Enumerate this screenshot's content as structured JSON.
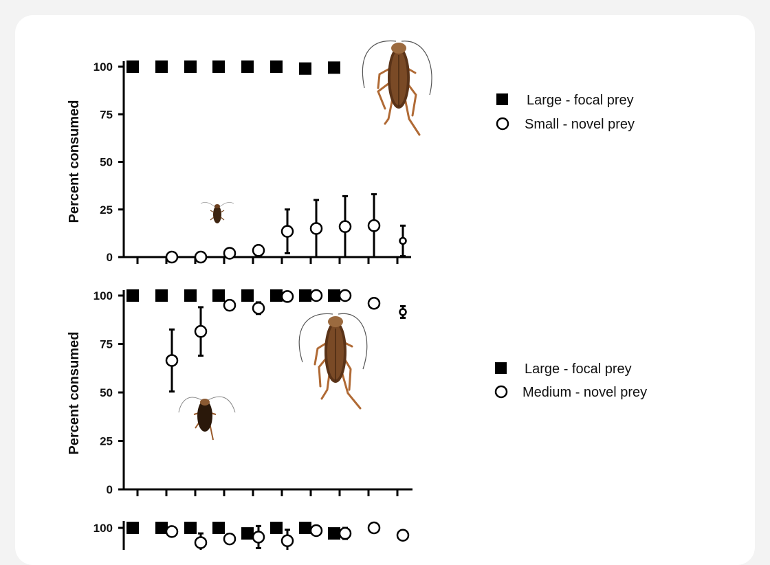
{
  "colors": {
    "marker": "#000000",
    "open_marker_fill": "#ffffff",
    "cockroach_body": "#5a3318",
    "cockroach_wing": "#8a5a33",
    "cockroach_leg": "#b06a35",
    "background": "#f3f3f3",
    "card": "#ffffff"
  },
  "chart_data": [
    {
      "type": "scatter",
      "ylabel": "Percent consumed",
      "ylim": [
        0,
        100
      ],
      "yticks": [
        0,
        25,
        50,
        75,
        100
      ],
      "x_tick_count": 10,
      "legend_position": "right",
      "series": [
        {
          "name": "Large - focal prey",
          "marker": "filled-square",
          "x": [
            1,
            2,
            3,
            4,
            5,
            6,
            7,
            8
          ],
          "y": [
            100,
            100,
            100,
            100,
            100,
            100,
            99,
            99.5
          ]
        },
        {
          "name": "Small - novel prey",
          "marker": "open-circle",
          "x": [
            2,
            3,
            4,
            5,
            6,
            7,
            8,
            9,
            10
          ],
          "y": [
            0,
            0,
            2,
            3.5,
            13.5,
            15,
            16,
            16.5,
            8.5
          ],
          "err": [
            0,
            0,
            0,
            0,
            11.5,
            15,
            16,
            16.5,
            8
          ]
        }
      ]
    },
    {
      "type": "scatter",
      "ylabel": "Percent consumed",
      "ylim": [
        0,
        100
      ],
      "yticks": [
        0,
        25,
        50,
        75,
        100
      ],
      "x_tick_count": 10,
      "legend_position": "right",
      "series": [
        {
          "name": "Large - focal prey",
          "marker": "filled-square",
          "x": [
            1,
            2,
            3,
            4,
            5,
            6,
            7,
            8
          ],
          "y": [
            100,
            100,
            100,
            100,
            100,
            100,
            100,
            100
          ]
        },
        {
          "name": "Medium - novel prey",
          "marker": "open-circle",
          "x": [
            2,
            3,
            4,
            5,
            6,
            7,
            8,
            9,
            10
          ],
          "y": [
            66.5,
            81.5,
            95,
            93.5,
            99.5,
            100,
            100,
            96,
            91.5
          ],
          "err": [
            16,
            12.5,
            0,
            3,
            0,
            0,
            0,
            0,
            3
          ]
        }
      ]
    },
    {
      "type": "scatter",
      "ylim": [
        0,
        100
      ],
      "yticks": [
        100
      ],
      "partial": true,
      "series": [
        {
          "marker": "filled-square",
          "x": [
            1,
            2,
            3,
            4,
            5,
            6,
            7,
            8
          ],
          "y": [
            100,
            100,
            100,
            100,
            97,
            100,
            100,
            97
          ]
        },
        {
          "marker": "open-circle",
          "x": [
            2,
            3,
            4,
            5,
            6,
            7,
            8,
            9,
            10
          ],
          "y": [
            98,
            92,
            94,
            95,
            93,
            98.5,
            97,
            100,
            96
          ],
          "err": [
            0,
            5,
            0,
            6,
            6,
            0,
            3,
            0,
            2
          ]
        }
      ]
    }
  ]
}
